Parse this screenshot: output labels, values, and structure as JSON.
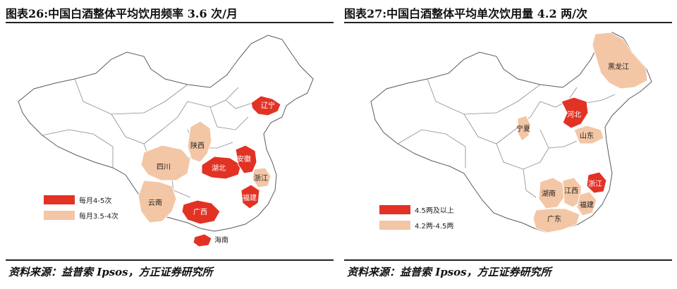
{
  "colors": {
    "high": "#e23224",
    "mid": "#f3c6a5",
    "outline": "#5a5a5a"
  },
  "left_panel": {
    "title": "图表26:中国白酒整体平均饮用频率 3.6 次/月",
    "legend": [
      {
        "label": "每月4-5次",
        "color_key": "high"
      },
      {
        "label": "每月3.5-4次",
        "color_key": "mid"
      }
    ],
    "provinces": {
      "liaoning": "辽宁",
      "shaanxi": "陕西",
      "anhui": "安徽",
      "hubei": "湖北",
      "sichuan": "四川",
      "zhejiang": "浙江",
      "fujian": "福建",
      "yunnan": "云南",
      "guangxi": "广西",
      "hainan": "海南"
    },
    "source": "资料来源：益普索 Ipsos，方正证券研究所"
  },
  "right_panel": {
    "title": "图表27:中国白酒整体平均单次饮用量 4.2 两/次",
    "legend": [
      {
        "label": "4.5两及以上",
        "color_key": "high"
      },
      {
        "label": "4.2两-4.5两",
        "color_key": "mid"
      }
    ],
    "provinces": {
      "heilongjiang": "黑龙江",
      "hebei": "河北",
      "ningxia": "宁夏",
      "shandong": "山东",
      "hunan": "湖南",
      "jiangxi": "江西",
      "zhejiang": "浙江",
      "fujian": "福建",
      "guangdong": "广东"
    },
    "source": "资料来源：益普索 Ipsos，方正证券研究所"
  }
}
